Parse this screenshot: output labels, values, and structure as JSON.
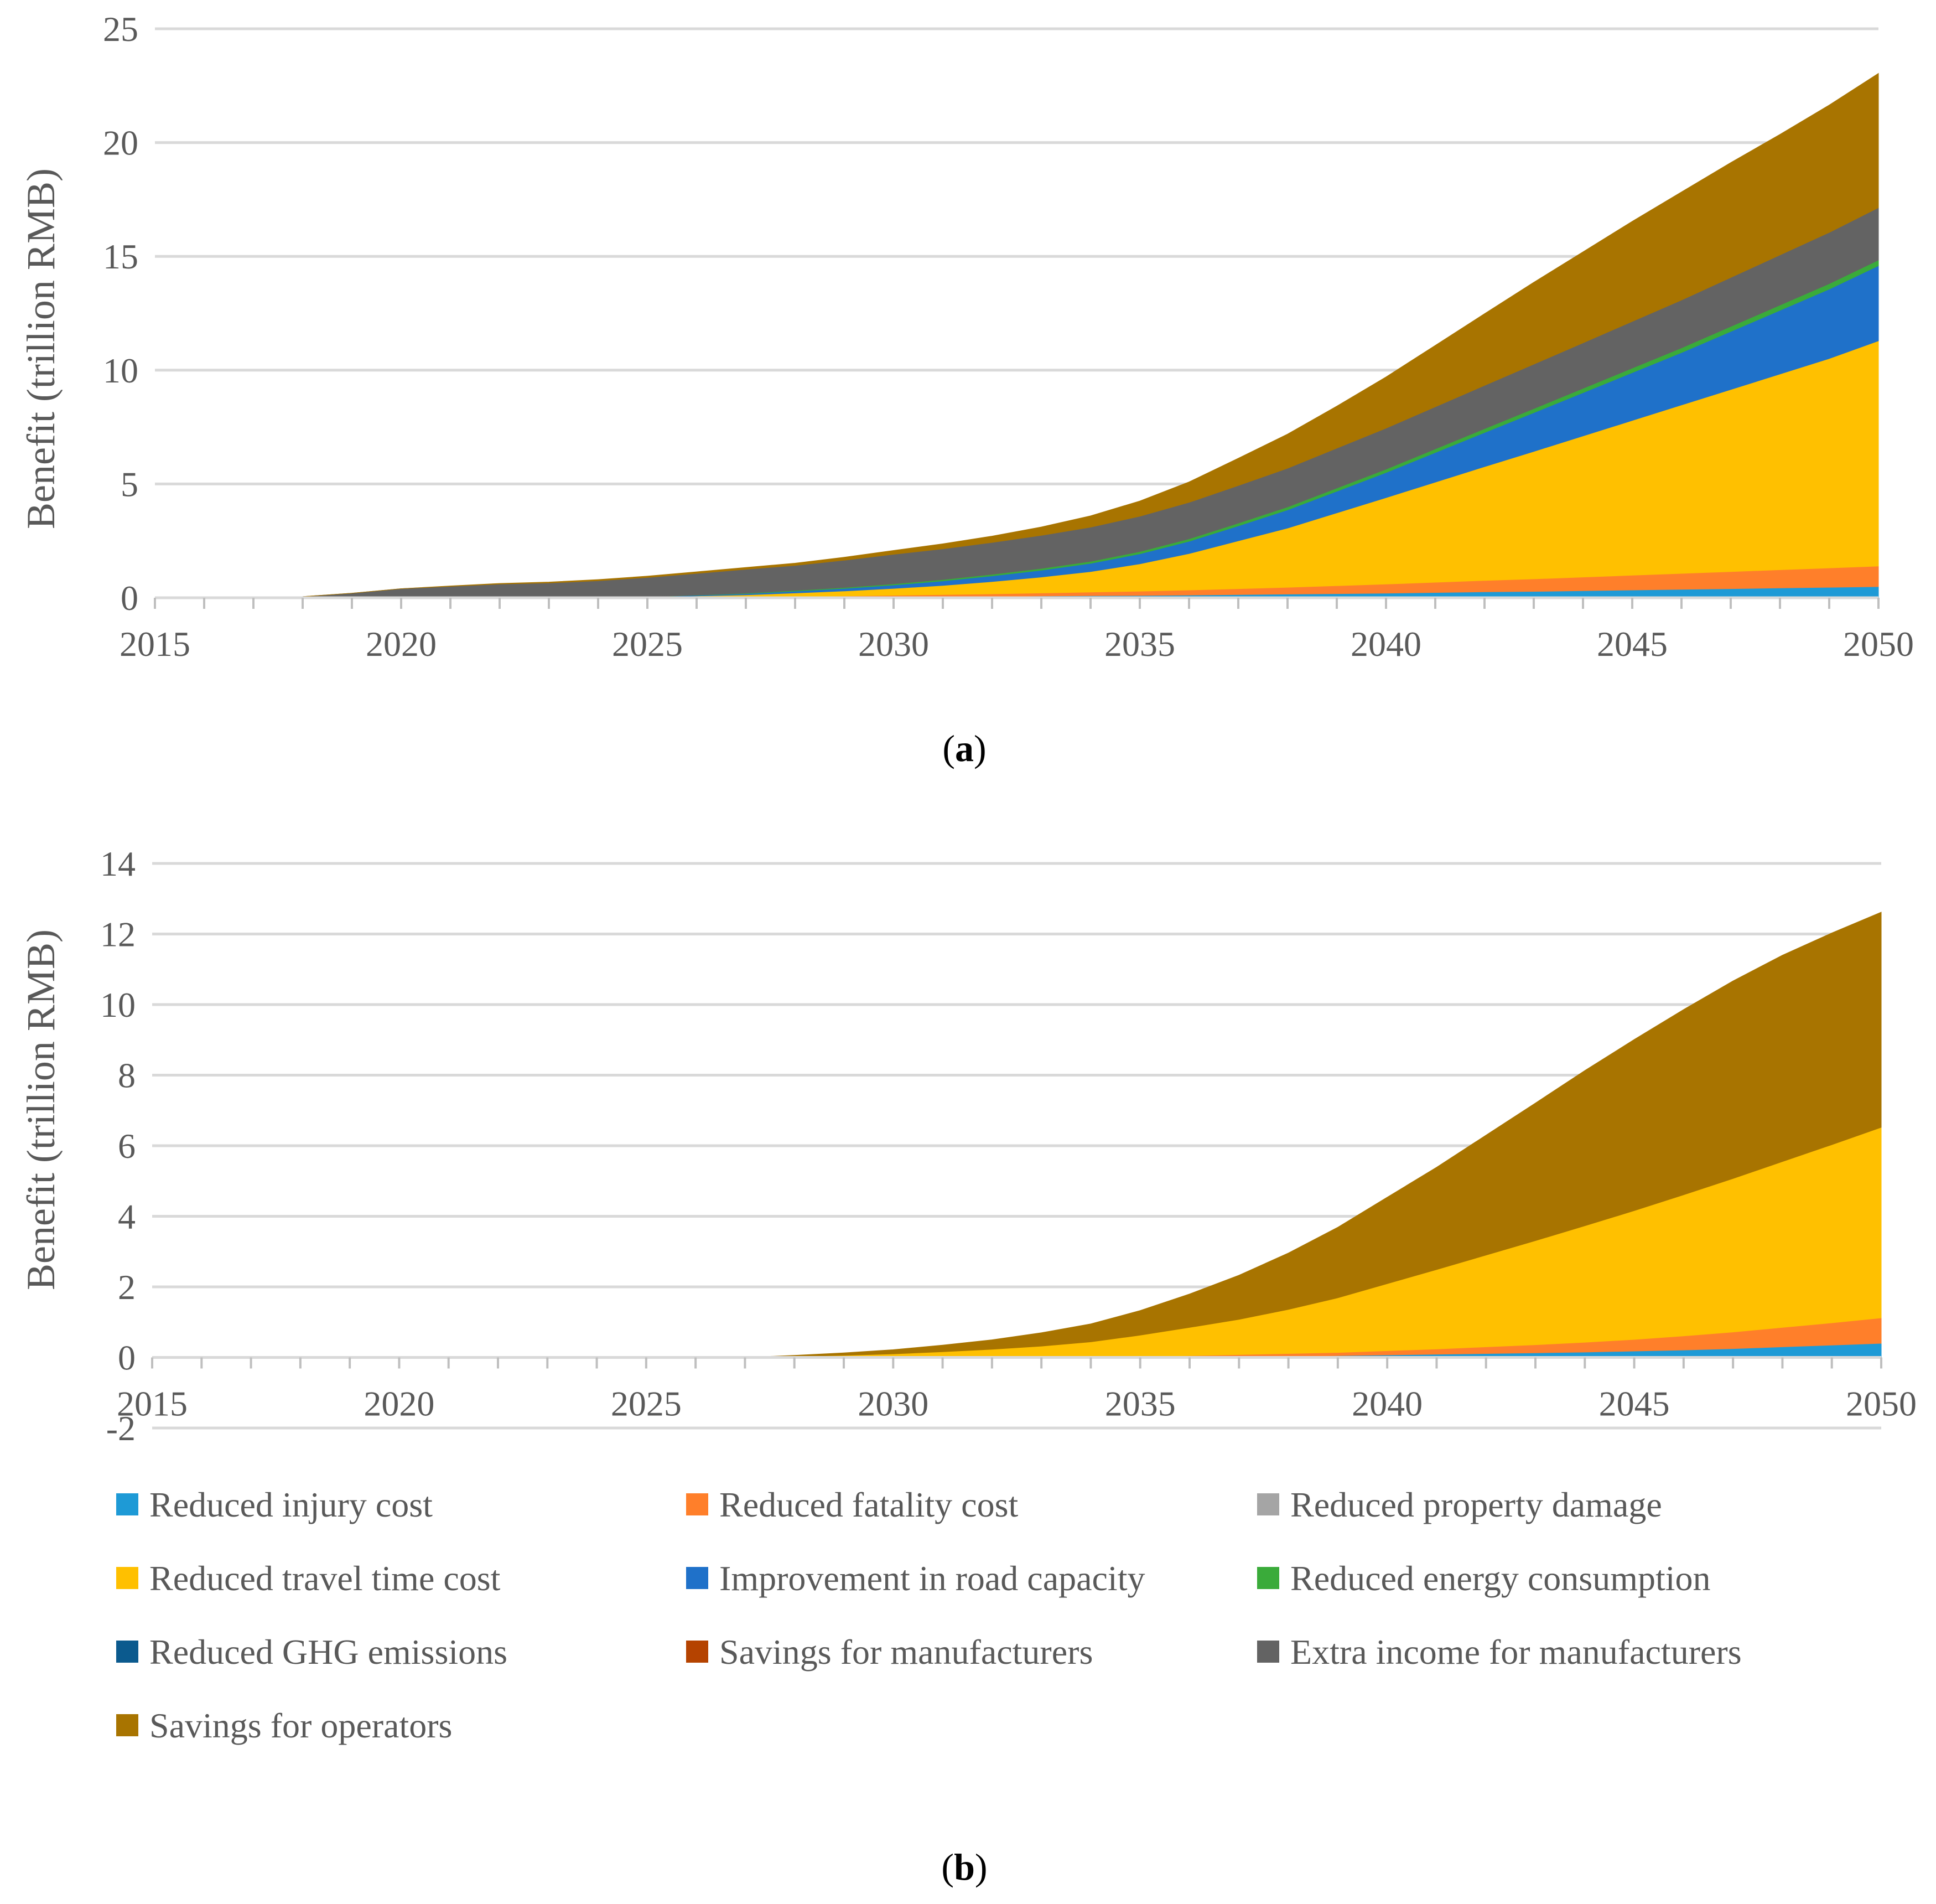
{
  "chart_data": [
    {
      "type": "area",
      "stacked": true,
      "panel_label": "a",
      "ylabel": "Benefit (trillion RMB)",
      "xlim": [
        2015,
        2050
      ],
      "ylim": [
        0,
        25
      ],
      "yticks": [
        0,
        5,
        10,
        15,
        20,
        25
      ],
      "xticks": [
        2015,
        2020,
        2025,
        2030,
        2035,
        2040,
        2045,
        2050
      ],
      "grid": true,
      "x": [
        2015,
        2016,
        2017,
        2018,
        2019,
        2020,
        2021,
        2022,
        2023,
        2024,
        2025,
        2026,
        2027,
        2028,
        2029,
        2030,
        2031,
        2032,
        2033,
        2034,
        2035,
        2036,
        2037,
        2038,
        2039,
        2040,
        2041,
        2042,
        2043,
        2044,
        2045,
        2046,
        2047,
        2048,
        2049,
        2050
      ],
      "series": [
        {
          "name": "Reduced injury cost",
          "color": "#1e9ad6",
          "values": [
            0,
            0,
            0,
            0,
            0,
            0,
            0,
            0,
            0,
            0,
            0,
            0.01,
            0.01,
            0.02,
            0.03,
            0.04,
            0.05,
            0.06,
            0.08,
            0.09,
            0.1,
            0.12,
            0.14,
            0.16,
            0.18,
            0.2,
            0.23,
            0.26,
            0.28,
            0.31,
            0.34,
            0.37,
            0.4,
            0.43,
            0.46,
            0.49
          ]
        },
        {
          "name": "Reduced fatality cost",
          "color": "#ff7f2a",
          "values": [
            0,
            0,
            0,
            0,
            0,
            0,
            0,
            0,
            0,
            0,
            0,
            0.01,
            0.02,
            0.03,
            0.05,
            0.07,
            0.09,
            0.11,
            0.13,
            0.16,
            0.19,
            0.22,
            0.26,
            0.3,
            0.35,
            0.4,
            0.45,
            0.5,
            0.55,
            0.6,
            0.65,
            0.7,
            0.75,
            0.8,
            0.85,
            0.9
          ]
        },
        {
          "name": "Reduced property damage",
          "color": "#a5a5a5",
          "values": [
            0,
            0,
            0,
            0,
            0,
            0,
            0,
            0,
            0,
            0,
            0,
            0,
            0,
            0,
            0,
            0,
            0,
            0,
            0,
            0,
            0,
            0,
            0,
            0,
            0,
            0,
            0,
            0,
            0,
            0,
            0,
            0,
            0,
            0,
            0,
            0
          ]
        },
        {
          "name": "Reduced travel time cost",
          "color": "#ffc000",
          "values": [
            0,
            0,
            0,
            0,
            0,
            0,
            0,
            0,
            0,
            0,
            0.03,
            0.06,
            0.1,
            0.16,
            0.22,
            0.3,
            0.4,
            0.54,
            0.7,
            0.9,
            1.2,
            1.6,
            2.1,
            2.6,
            3.2,
            3.8,
            4.4,
            5.0,
            5.6,
            6.2,
            6.8,
            7.4,
            8.0,
            8.6,
            9.2,
            9.9
          ]
        },
        {
          "name": "Improvement in road capacity",
          "color": "#1f71c9",
          "values": [
            0,
            0,
            0,
            0,
            0,
            0,
            0,
            0,
            0,
            0,
            0.01,
            0.03,
            0.05,
            0.08,
            0.11,
            0.15,
            0.2,
            0.25,
            0.3,
            0.36,
            0.44,
            0.54,
            0.66,
            0.8,
            0.95,
            1.1,
            1.3,
            1.5,
            1.7,
            1.9,
            2.1,
            2.3,
            2.55,
            2.8,
            3.05,
            3.3
          ]
        },
        {
          "name": "Reduced energy consumption",
          "color": "#3aab3a",
          "values": [
            0,
            0,
            0,
            0,
            0,
            0,
            0,
            0,
            0,
            0,
            0,
            0.01,
            0.02,
            0.03,
            0.04,
            0.05,
            0.06,
            0.07,
            0.08,
            0.09,
            0.1,
            0.11,
            0.12,
            0.13,
            0.14,
            0.15,
            0.16,
            0.17,
            0.18,
            0.19,
            0.2,
            0.21,
            0.22,
            0.23,
            0.24,
            0.25
          ]
        },
        {
          "name": "Reduced GHG emissions",
          "color": "#0b5a8e",
          "values": [
            0,
            0,
            0,
            0,
            0,
            0,
            0,
            0,
            0,
            0,
            0,
            0,
            0,
            0,
            0,
            0,
            0,
            0,
            0,
            0,
            0,
            0,
            0,
            0,
            0,
            0,
            0,
            0,
            0,
            0,
            0,
            0,
            0,
            0,
            0,
            0
          ]
        },
        {
          "name": "Savings for manufacturers",
          "color": "#b54300",
          "values": [
            0,
            0,
            0,
            0,
            0,
            0,
            0,
            0,
            0,
            0,
            0,
            0,
            0,
            0,
            0,
            0,
            0,
            0,
            0,
            0,
            0,
            0,
            0,
            0,
            0,
            0,
            0,
            0,
            0,
            0,
            0,
            0,
            0,
            0,
            0,
            0
          ]
        },
        {
          "name": "Extra income for manufacturers",
          "color": "#636363",
          "values": [
            0,
            0,
            0,
            0.05,
            0.2,
            0.4,
            0.5,
            0.6,
            0.65,
            0.75,
            0.85,
            0.95,
            1.05,
            1.1,
            1.2,
            1.3,
            1.35,
            1.4,
            1.45,
            1.5,
            1.55,
            1.6,
            1.65,
            1.7,
            1.75,
            1.8,
            1.85,
            1.9,
            1.95,
            2.0,
            2.05,
            2.1,
            2.15,
            2.2,
            2.25,
            2.3
          ]
        },
        {
          "name": "Savings for operators",
          "color": "#a87400",
          "values": [
            0,
            0,
            0,
            0,
            0,
            0,
            0.02,
            0.03,
            0.04,
            0.05,
            0.06,
            0.07,
            0.08,
            0.1,
            0.13,
            0.17,
            0.22,
            0.28,
            0.37,
            0.5,
            0.67,
            0.9,
            1.2,
            1.5,
            1.85,
            2.25,
            2.7,
            3.15,
            3.6,
            4.0,
            4.4,
            4.75,
            5.05,
            5.3,
            5.6,
            5.9
          ]
        }
      ]
    },
    {
      "type": "area",
      "stacked": true,
      "panel_label": "b",
      "ylabel": "Benefit (trillion RMB)",
      "xlim": [
        2015,
        2050
      ],
      "ylim": [
        -2,
        14
      ],
      "yticks": [
        -2,
        0,
        2,
        4,
        6,
        8,
        10,
        12,
        14
      ],
      "xticks": [
        2015,
        2020,
        2025,
        2030,
        2035,
        2040,
        2045,
        2050
      ],
      "grid": true,
      "x": [
        2015,
        2016,
        2017,
        2018,
        2019,
        2020,
        2021,
        2022,
        2023,
        2024,
        2025,
        2026,
        2027,
        2028,
        2029,
        2030,
        2031,
        2032,
        2033,
        2034,
        2035,
        2036,
        2037,
        2038,
        2039,
        2040,
        2041,
        2042,
        2043,
        2044,
        2045,
        2046,
        2047,
        2048,
        2049,
        2050
      ],
      "series": [
        {
          "name": "Reduced injury cost",
          "color": "#1e9ad6",
          "values": [
            0,
            0,
            0,
            0,
            0,
            0,
            0,
            0,
            0,
            0,
            0,
            0,
            0,
            0,
            0,
            0,
            0,
            0,
            0,
            0,
            0.01,
            0.02,
            0.03,
            0.04,
            0.05,
            0.07,
            0.09,
            0.11,
            0.13,
            0.15,
            0.18,
            0.21,
            0.25,
            0.3,
            0.35,
            0.4
          ]
        },
        {
          "name": "Reduced fatality cost",
          "color": "#ff7f2a",
          "values": [
            0,
            0,
            0,
            0,
            0,
            0,
            0,
            0,
            0,
            0,
            0,
            0,
            0,
            0,
            0,
            0,
            0,
            0,
            0,
            0.01,
            0.02,
            0.03,
            0.05,
            0.07,
            0.09,
            0.12,
            0.15,
            0.19,
            0.23,
            0.28,
            0.33,
            0.4,
            0.47,
            0.55,
            0.63,
            0.72
          ]
        },
        {
          "name": "Reduced property damage",
          "color": "#a5a5a5",
          "values": [
            0,
            0,
            0,
            0,
            0,
            0,
            0,
            0,
            0,
            0,
            0,
            0,
            0,
            0,
            0,
            0,
            0,
            0,
            0,
            0,
            0,
            0,
            0,
            0,
            0,
            0,
            0,
            0,
            0,
            0,
            0,
            0,
            0,
            0,
            0,
            0
          ]
        },
        {
          "name": "Reduced travel time cost",
          "color": "#ffc000",
          "values": [
            0,
            0,
            0,
            0,
            0,
            0,
            0,
            0,
            0,
            0,
            0,
            0,
            0,
            0.03,
            0.06,
            0.1,
            0.16,
            0.23,
            0.32,
            0.43,
            0.6,
            0.8,
            1.0,
            1.25,
            1.55,
            1.9,
            2.25,
            2.6,
            2.95,
            3.3,
            3.65,
            4.0,
            4.35,
            4.7,
            5.05,
            5.4
          ]
        },
        {
          "name": "Improvement in road capacity",
          "color": "#1f71c9",
          "values": [
            0,
            0,
            0,
            0,
            0,
            0,
            0,
            0,
            0,
            0,
            0,
            0,
            0,
            0,
            0,
            0,
            0,
            0,
            0,
            0,
            0,
            0,
            0,
            0,
            0,
            0,
            0,
            0,
            0,
            0,
            0,
            0,
            0,
            0,
            0,
            0
          ]
        },
        {
          "name": "Reduced energy consumption",
          "color": "#3aab3a",
          "values": [
            0,
            0,
            0,
            0,
            0,
            0,
            0,
            0,
            0,
            0,
            0,
            0,
            0,
            0,
            0,
            0,
            0,
            0,
            0,
            0,
            0,
            0,
            0,
            0,
            0,
            0,
            0,
            0,
            0,
            0,
            0,
            0,
            0,
            0,
            0,
            0
          ]
        },
        {
          "name": "Reduced GHG emissions",
          "color": "#0b5a8e",
          "values": [
            0,
            0,
            0,
            0,
            0,
            0,
            0,
            0,
            0,
            0,
            0,
            0,
            0,
            0,
            0,
            0,
            0,
            0,
            0,
            0,
            0,
            0,
            0,
            0,
            0,
            0,
            0,
            0,
            0,
            0,
            0,
            0,
            0,
            0,
            0,
            0
          ]
        },
        {
          "name": "Savings for manufacturers",
          "color": "#b54300",
          "values": [
            0,
            0,
            0,
            0,
            0,
            0,
            0,
            0,
            0,
            0,
            0,
            0,
            0,
            0,
            0,
            0,
            0,
            0,
            0,
            0,
            0,
            0,
            0,
            0,
            0,
            0,
            0,
            0,
            0,
            0,
            0,
            0,
            0,
            0,
            0,
            0
          ]
        },
        {
          "name": "Extra income for manufacturers",
          "color": "#636363",
          "values": [
            0,
            0,
            0,
            0,
            0,
            0,
            0,
            0,
            0,
            0,
            0,
            0,
            0,
            0,
            0,
            0,
            0,
            0,
            0,
            0,
            0,
            0,
            0,
            0,
            0,
            0,
            0,
            0,
            0,
            0,
            0,
            0,
            0,
            0,
            0,
            0
          ]
        },
        {
          "name": "Savings for operators",
          "color": "#a87400",
          "values": [
            0,
            0,
            0,
            0,
            0,
            0,
            0,
            0,
            0,
            0,
            0,
            0,
            0,
            0.03,
            0.07,
            0.12,
            0.19,
            0.27,
            0.38,
            0.51,
            0.7,
            0.95,
            1.25,
            1.6,
            2.0,
            2.45,
            2.9,
            3.4,
            3.9,
            4.4,
            4.85,
            5.25,
            5.6,
            5.85,
            6.0,
            6.1
          ]
        }
      ]
    }
  ],
  "legend": {
    "entries": [
      {
        "label": "Reduced injury cost",
        "color": "#1e9ad6"
      },
      {
        "label": "Reduced fatality cost",
        "color": "#ff7f2a"
      },
      {
        "label": "Reduced property damage",
        "color": "#a5a5a5"
      },
      {
        "label": "Reduced travel time cost",
        "color": "#ffc000"
      },
      {
        "label": "Improvement in road capacity",
        "color": "#1f71c9"
      },
      {
        "label": "Reduced energy consumption",
        "color": "#3aab3a"
      },
      {
        "label": "Reduced GHG emissions",
        "color": "#0b5a8e"
      },
      {
        "label": "Savings for manufacturers",
        "color": "#b54300"
      },
      {
        "label": "Extra income for manufacturers",
        "color": "#636363"
      },
      {
        "label": "Savings for operators",
        "color": "#a87400"
      }
    ]
  },
  "panel_labels": {
    "a": {
      "open": "(",
      "letter": "a",
      "close": ")"
    },
    "b": {
      "open": "(",
      "letter": "b",
      "close": ")"
    }
  }
}
